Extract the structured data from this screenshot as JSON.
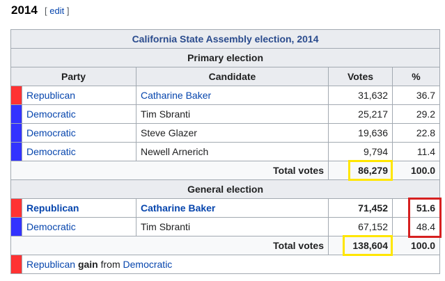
{
  "heading": "2014",
  "edit": {
    "open": "[ ",
    "label": "edit",
    "close": " ]"
  },
  "table": {
    "caption": "California State Assembly election, 2014",
    "primary_label": "Primary election",
    "headers": {
      "party": "Party",
      "candidate": "Candidate",
      "votes": "Votes",
      "pct": "%"
    },
    "primary_rows": [
      {
        "color": "#ff3333",
        "party": "Republican",
        "candidate": "Catharine Baker",
        "votes": "31,632",
        "pct": "36.7"
      },
      {
        "color": "#3333ff",
        "party": "Democratic",
        "candidate": "Tim Sbranti",
        "votes": "25,217",
        "pct": "29.2"
      },
      {
        "color": "#3333ff",
        "party": "Democratic",
        "candidate": "Steve Glazer",
        "votes": "19,636",
        "pct": "22.8"
      },
      {
        "color": "#3333ff",
        "party": "Democratic",
        "candidate": "Newell Arnerich",
        "votes": "9,794",
        "pct": "11.4"
      }
    ],
    "primary_total": {
      "label": "Total votes",
      "votes": "86,279",
      "pct": "100.0"
    },
    "general_label": "General election",
    "general_rows": [
      {
        "color": "#ff3333",
        "party": "Republican",
        "candidate": "Catharine Baker",
        "votes": "71,452",
        "pct": "51.6"
      },
      {
        "color": "#3333ff",
        "party": "Democratic",
        "candidate": "Tim Sbranti",
        "votes": "67,152",
        "pct": "48.4"
      }
    ],
    "general_total": {
      "label": "Total votes",
      "votes": "138,604",
      "pct": "100.0"
    },
    "result": {
      "color": "#ff3333",
      "winner": "Republican",
      "word": "gain",
      "from": "from",
      "loser": "Democratic"
    }
  },
  "highlight_colors": {
    "yellow": "#ffe600",
    "red": "#d62020"
  }
}
